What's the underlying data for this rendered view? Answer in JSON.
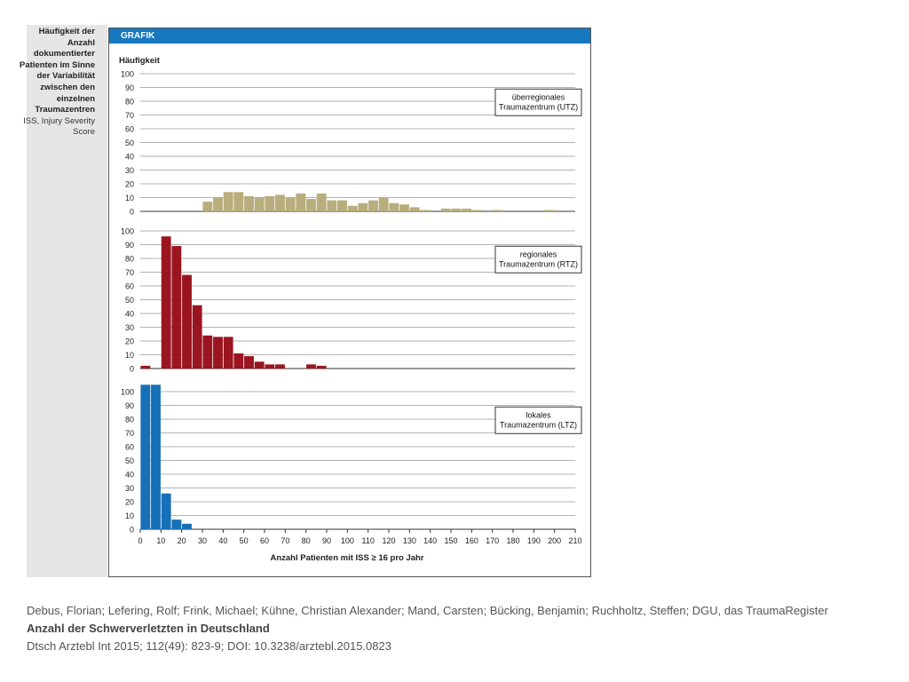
{
  "sidebar": {
    "caption_bold": "Häufigkeit der Anzahl dokumentierter Patienten im Sinne der Variabilität zwischen den einzelnen Traumazentren",
    "caption_normal": "ISS, Injury Severity Score"
  },
  "figure": {
    "header": "GRAFIK"
  },
  "chart_data": [
    {
      "type": "bar",
      "ylabel": "Häufigkeit",
      "legend": "überregionales Traumazentrum (UTZ)",
      "legend_lines": [
        "überregionales",
        "Traumazentrum (UTZ)"
      ],
      "color": "#b8ad7c",
      "ylim": [
        0,
        100
      ],
      "yticks": [
        0,
        10,
        20,
        30,
        40,
        50,
        60,
        70,
        80,
        90,
        100
      ],
      "bins": [
        {
          "x": 30,
          "value": 7
        },
        {
          "x": 35,
          "value": 10
        },
        {
          "x": 40,
          "value": 14
        },
        {
          "x": 45,
          "value": 14
        },
        {
          "x": 50,
          "value": 11
        },
        {
          "x": 55,
          "value": 10
        },
        {
          "x": 60,
          "value": 11
        },
        {
          "x": 65,
          "value": 12
        },
        {
          "x": 70,
          "value": 10
        },
        {
          "x": 75,
          "value": 13
        },
        {
          "x": 80,
          "value": 9
        },
        {
          "x": 85,
          "value": 13
        },
        {
          "x": 90,
          "value": 8
        },
        {
          "x": 95,
          "value": 8
        },
        {
          "x": 100,
          "value": 4
        },
        {
          "x": 105,
          "value": 6
        },
        {
          "x": 110,
          "value": 8
        },
        {
          "x": 115,
          "value": 10
        },
        {
          "x": 120,
          "value": 6
        },
        {
          "x": 125,
          "value": 5
        },
        {
          "x": 130,
          "value": 3
        },
        {
          "x": 135,
          "value": 1
        },
        {
          "x": 145,
          "value": 2
        },
        {
          "x": 150,
          "value": 2
        },
        {
          "x": 155,
          "value": 2
        },
        {
          "x": 160,
          "value": 1
        },
        {
          "x": 170,
          "value": 1
        },
        {
          "x": 195,
          "value": 1
        }
      ]
    },
    {
      "type": "bar",
      "legend": "regionales Traumazentrum (RTZ)",
      "legend_lines": [
        "regionales",
        "Traumazentrum (RTZ)"
      ],
      "color": "#9b1520",
      "ylim": [
        0,
        100
      ],
      "yticks": [
        0,
        10,
        20,
        30,
        40,
        50,
        60,
        70,
        80,
        90,
        100
      ],
      "bins": [
        {
          "x": 0,
          "value": 2
        },
        {
          "x": 10,
          "value": 96
        },
        {
          "x": 15,
          "value": 89
        },
        {
          "x": 20,
          "value": 68
        },
        {
          "x": 25,
          "value": 46
        },
        {
          "x": 30,
          "value": 24
        },
        {
          "x": 35,
          "value": 23
        },
        {
          "x": 40,
          "value": 23
        },
        {
          "x": 45,
          "value": 11
        },
        {
          "x": 50,
          "value": 9
        },
        {
          "x": 55,
          "value": 5
        },
        {
          "x": 60,
          "value": 3
        },
        {
          "x": 65,
          "value": 3
        },
        {
          "x": 80,
          "value": 3
        },
        {
          "x": 85,
          "value": 2
        }
      ]
    },
    {
      "type": "bar",
      "legend": "lokales Traumazentrum (LTZ)",
      "legend_lines": [
        "lokales",
        "Traumazentrum (LTZ)"
      ],
      "color": "#1670b8",
      "ylim": [
        0,
        100
      ],
      "yticks": [
        0,
        10,
        20,
        30,
        40,
        50,
        60,
        70,
        80,
        90,
        100
      ],
      "bins": [
        {
          "x": 0,
          "value": 105
        },
        {
          "x": 5,
          "value": 105
        },
        {
          "x": 10,
          "value": 26
        },
        {
          "x": 15,
          "value": 7
        },
        {
          "x": 20,
          "value": 4
        }
      ],
      "xlabel": "Anzahl Patienten mit ISS ≥ 16 pro Jahr",
      "xticks": [
        0,
        10,
        20,
        30,
        40,
        50,
        60,
        70,
        80,
        90,
        100,
        110,
        120,
        130,
        140,
        150,
        160,
        170,
        180,
        190,
        200,
        210
      ],
      "xlim": [
        0,
        210
      ]
    }
  ],
  "citation": {
    "authors": "Debus, Florian; Lefering, Rolf; Frink, Michael; Kühne, Christian Alexander; Mand, Carsten; Bücking, Benjamin; Ruchholtz, Steffen; DGU, das TraumaRegister",
    "title": "Anzahl der Schwerverletzten in Deutschland",
    "source": "Dtsch Arztebl Int 2015; 112(49): 823-9; DOI: 10.3238/arztebl.2015.0823"
  }
}
